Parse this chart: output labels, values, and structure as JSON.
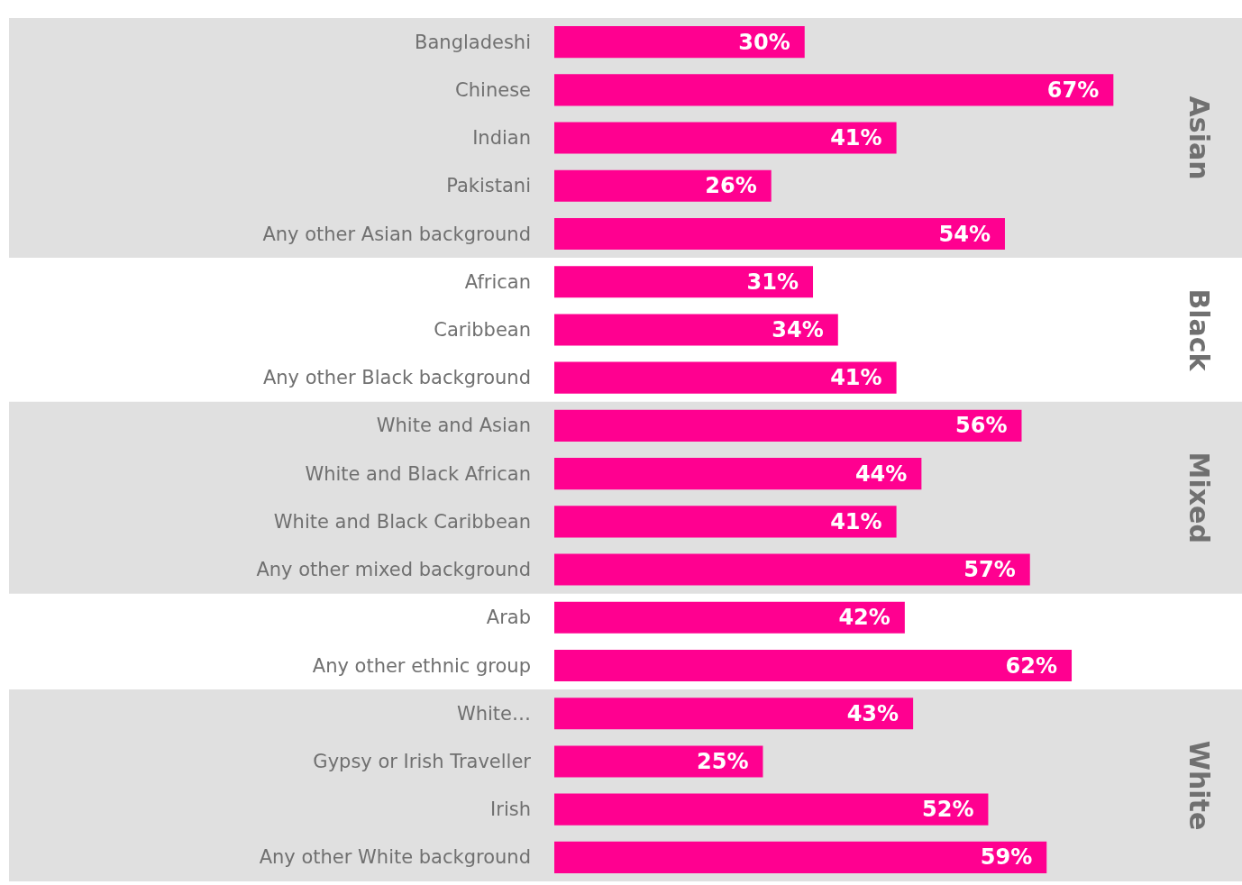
{
  "chart_data": {
    "type": "bar",
    "orientation": "horizontal",
    "tick_labels": "y",
    "categories": [
      "Bangladeshi",
      "Chinese",
      "Indian",
      "Pakistani",
      "Any other Asian background",
      "African",
      "Caribbean",
      "Any other Black background",
      "White and Asian",
      "White and Black African",
      "White and Black Caribbean",
      "Any other mixed background",
      "Arab",
      "Any other ethnic group",
      "White…",
      "Gypsy or Irish Traveller",
      "Irish",
      "Any other White background"
    ],
    "values": [
      30,
      67,
      41,
      26,
      54,
      31,
      34,
      41,
      56,
      44,
      41,
      57,
      42,
      62,
      43,
      25,
      52,
      59
    ],
    "value_labels": [
      "30%",
      "67%",
      "41%",
      "26%",
      "54%",
      "31%",
      "34%",
      "41%",
      "56%",
      "44%",
      "41%",
      "57%",
      "42%",
      "62%",
      "43%",
      "25%",
      "52%",
      "59%"
    ],
    "color": "#ff0090",
    "bands": [
      {
        "axis": "y",
        "from": "Bangladeshi",
        "to": "Any other Asian background",
        "label": "Asian",
        "color": "#e0e0e0"
      },
      {
        "axis": "y",
        "from": "White and Asian",
        "to": "Any other mixed background",
        "label": "Mixed",
        "color": "#e0e0e0"
      },
      {
        "axis": "y",
        "from": "White…",
        "to": "Any other White background",
        "label": "White",
        "color": "#e0e0e0"
      }
    ],
    "annotations": [
      "Black"
    ],
    "grid": false
  }
}
